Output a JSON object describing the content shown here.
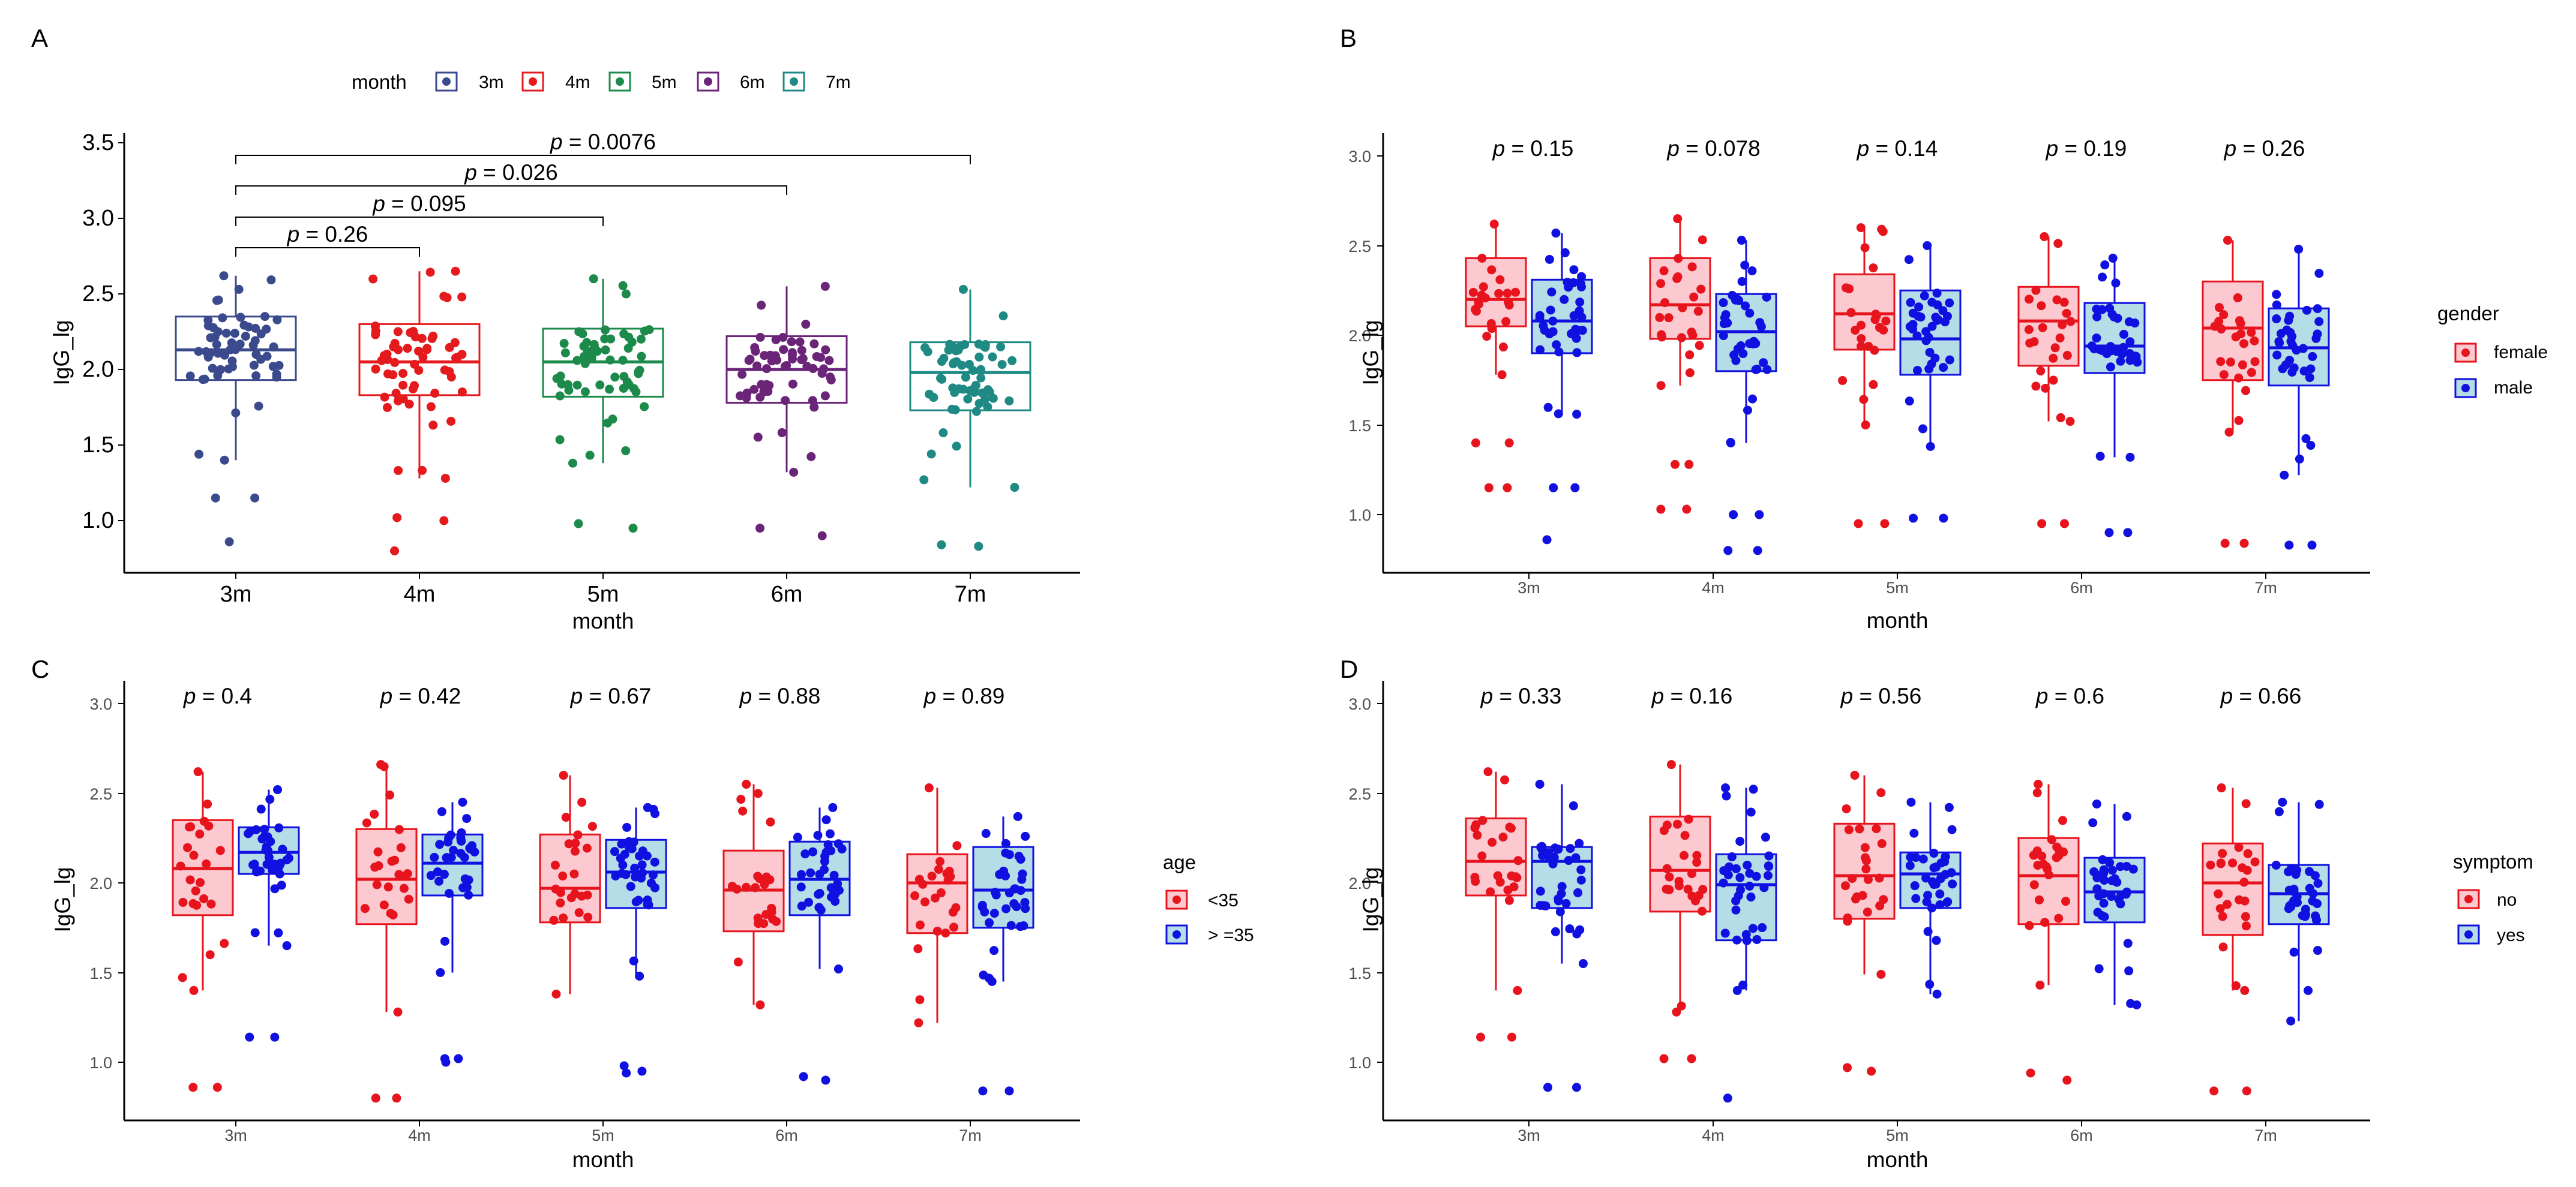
{
  "panels": [
    {
      "label": "A",
      "xlabel": "month",
      "ylabel": "IgG_lg",
      "ylim": [
        0.7,
        3.55
      ],
      "yticks": [
        "1.0",
        "1.5",
        "2.0",
        "2.5",
        "3.0",
        "3.5"
      ],
      "categories": [
        "3m",
        "4m",
        "5m",
        "6m",
        "7m"
      ],
      "legend": {
        "title": "month",
        "items": [
          "3m",
          "4m",
          "5m",
          "6m",
          "7m"
        ]
      },
      "colors": {
        "3m": "#3b4a8c",
        "4m": "#e41a1c",
        "5m": "#1b8a4a",
        "6m": "#6a2478",
        "7m": "#1f8a84"
      },
      "comparisons": [
        {
          "from": "3m",
          "to": "4m",
          "label": "p = 0.26"
        },
        {
          "from": "3m",
          "to": "5m",
          "label": "p = 0.095"
        },
        {
          "from": "3m",
          "to": "6m",
          "label": "p = 0.026"
        },
        {
          "from": "3m",
          "to": "7m",
          "label": "p = 0.0076"
        }
      ]
    },
    {
      "label": "B",
      "xlabel": "month",
      "ylabel": "IgG_lg",
      "ylim": [
        0.7,
        3.05
      ],
      "yticks": [
        "1.0",
        "1.5",
        "2.0",
        "2.5",
        "3.0"
      ],
      "categories": [
        "3m",
        "4m",
        "5m",
        "6m",
        "7m"
      ],
      "pvalues": [
        "p = 0.15",
        "p = 0.078",
        "p = 0.14",
        "p = 0.19",
        "p = 0.26"
      ],
      "legend": {
        "title": "gender",
        "items": [
          "female",
          "male"
        ]
      }
    },
    {
      "label": "C",
      "xlabel": "month",
      "ylabel": "IgG_lg",
      "ylim": [
        0.7,
        3.05
      ],
      "yticks": [
        "1.0",
        "1.5",
        "2.0",
        "2.5",
        "3.0"
      ],
      "categories": [
        "3m",
        "4m",
        "5m",
        "6m",
        "7m"
      ],
      "pvalues": [
        "p = 0.4",
        "p = 0.42",
        "p = 0.67",
        "p = 0.88",
        "p = 0.89"
      ],
      "legend": {
        "title": "age",
        "items": [
          "<35",
          "> =35"
        ]
      }
    },
    {
      "label": "D",
      "xlabel": "month",
      "ylabel": "IgG_lg",
      "ylim": [
        0.7,
        3.05
      ],
      "yticks": [
        "1.0",
        "1.5",
        "2.0",
        "2.5",
        "3.0"
      ],
      "categories": [
        "3m",
        "4m",
        "5m",
        "6m",
        "7m"
      ],
      "pvalues": [
        "p = 0.33",
        "p = 0.16",
        "p = 0.56",
        "p = 0.6",
        "p = 0.66"
      ],
      "legend": {
        "title": "symptom",
        "items": [
          "no",
          "yes"
        ]
      }
    }
  ],
  "chart_data": [
    {
      "panel": "A",
      "type": "boxplot",
      "title": "",
      "xlabel": "month",
      "ylabel": "IgG_lg",
      "ylim": [
        0.7,
        3.55
      ],
      "categories": [
        "3m",
        "4m",
        "5m",
        "6m",
        "7m"
      ],
      "boxes": [
        {
          "group": "3m",
          "lo": 1.4,
          "q1": 1.93,
          "median": 2.13,
          "q3": 2.35,
          "hi": 2.62,
          "outliers": [
            1.15,
            1.15,
            0.86
          ]
        },
        {
          "group": "4m",
          "lo": 1.28,
          "q1": 1.83,
          "median": 2.05,
          "q3": 2.3,
          "hi": 2.65,
          "outliers": [
            1.02,
            1.0,
            0.8
          ]
        },
        {
          "group": "5m",
          "lo": 1.38,
          "q1": 1.82,
          "median": 2.05,
          "q3": 2.27,
          "hi": 2.6,
          "outliers": [
            0.98,
            0.95
          ]
        },
        {
          "group": "6m",
          "lo": 1.32,
          "q1": 1.78,
          "median": 2.0,
          "q3": 2.22,
          "hi": 2.55,
          "outliers": [
            0.95,
            0.9
          ]
        },
        {
          "group": "7m",
          "lo": 1.22,
          "q1": 1.73,
          "median": 1.98,
          "q3": 2.18,
          "hi": 2.53,
          "outliers": [
            0.84,
            0.83
          ]
        }
      ],
      "significance": [
        {
          "groups": [
            "3m",
            "4m"
          ],
          "p": "0.26"
        },
        {
          "groups": [
            "3m",
            "5m"
          ],
          "p": "0.095"
        },
        {
          "groups": [
            "3m",
            "6m"
          ],
          "p": "0.026"
        },
        {
          "groups": [
            "3m",
            "7m"
          ],
          "p": "0.0076"
        }
      ]
    },
    {
      "panel": "B",
      "type": "grouped-boxplot",
      "xlabel": "month",
      "ylabel": "IgG_lg",
      "ylim": [
        0.7,
        3.05
      ],
      "categories": [
        "3m",
        "4m",
        "5m",
        "6m",
        "7m"
      ],
      "series": [
        {
          "name": "female",
          "color": "#e8141d",
          "fill": "#fbc9cf",
          "boxes": [
            {
              "lo": 1.78,
              "q1": 2.05,
              "median": 2.2,
              "q3": 2.43,
              "hi": 2.62,
              "outliers": [
                1.4,
                1.4,
                1.15,
                1.15
              ]
            },
            {
              "lo": 1.72,
              "q1": 1.98,
              "median": 2.17,
              "q3": 2.43,
              "hi": 2.65,
              "outliers": [
                1.28,
                1.28,
                1.03,
                1.03
              ]
            },
            {
              "lo": 1.5,
              "q1": 1.92,
              "median": 2.12,
              "q3": 2.34,
              "hi": 2.6,
              "outliers": [
                0.95,
                0.95
              ]
            },
            {
              "lo": 1.52,
              "q1": 1.83,
              "median": 2.08,
              "q3": 2.27,
              "hi": 2.55,
              "outliers": [
                0.95,
                0.95
              ]
            },
            {
              "lo": 1.46,
              "q1": 1.75,
              "median": 2.04,
              "q3": 2.3,
              "hi": 2.53,
              "outliers": [
                0.84,
                0.84
              ]
            }
          ]
        },
        {
          "name": "male",
          "color": "#1010e0",
          "fill": "#b5dde8",
          "boxes": [
            {
              "lo": 1.56,
              "q1": 1.9,
              "median": 2.08,
              "q3": 2.31,
              "hi": 2.57,
              "outliers": [
                1.15,
                1.15,
                0.86
              ]
            },
            {
              "lo": 1.4,
              "q1": 1.8,
              "median": 2.02,
              "q3": 2.23,
              "hi": 2.53,
              "outliers": [
                1.0,
                1.0,
                0.8,
                0.8
              ]
            },
            {
              "lo": 1.38,
              "q1": 1.78,
              "median": 1.98,
              "q3": 2.25,
              "hi": 2.5,
              "outliers": [
                0.98,
                0.98
              ]
            },
            {
              "lo": 1.32,
              "q1": 1.79,
              "median": 1.94,
              "q3": 2.18,
              "hi": 2.43,
              "outliers": [
                0.9,
                0.9
              ]
            },
            {
              "lo": 1.22,
              "q1": 1.72,
              "median": 1.93,
              "q3": 2.15,
              "hi": 2.48,
              "outliers": [
                0.83,
                0.83
              ]
            }
          ]
        }
      ],
      "pvalues": [
        "0.15",
        "0.078",
        "0.14",
        "0.19",
        "0.26"
      ]
    },
    {
      "panel": "C",
      "type": "grouped-boxplot",
      "xlabel": "month",
      "ylabel": "IgG_lg",
      "ylim": [
        0.7,
        3.05
      ],
      "categories": [
        "3m",
        "4m",
        "5m",
        "6m",
        "7m"
      ],
      "series": [
        {
          "name": "<35",
          "color": "#e8141d",
          "fill": "#fbc9cf",
          "boxes": [
            {
              "lo": 1.4,
              "q1": 1.82,
              "median": 2.08,
              "q3": 2.35,
              "hi": 2.62,
              "outliers": [
                0.86,
                0.86
              ]
            },
            {
              "lo": 1.28,
              "q1": 1.77,
              "median": 2.02,
              "q3": 2.3,
              "hi": 2.66,
              "outliers": [
                0.8,
                0.8
              ]
            },
            {
              "lo": 1.38,
              "q1": 1.78,
              "median": 1.97,
              "q3": 2.27,
              "hi": 2.6,
              "outliers": []
            },
            {
              "lo": 1.32,
              "q1": 1.73,
              "median": 1.96,
              "q3": 2.18,
              "hi": 2.55,
              "outliers": []
            },
            {
              "lo": 1.22,
              "q1": 1.72,
              "median": 2.0,
              "q3": 2.16,
              "hi": 2.53,
              "outliers": []
            }
          ]
        },
        {
          "name": "> =35",
          "color": "#1010e0",
          "fill": "#b5dde8",
          "boxes": [
            {
              "lo": 1.65,
              "q1": 2.05,
              "median": 2.17,
              "q3": 2.31,
              "hi": 2.52,
              "outliers": [
                1.14,
                1.14
              ]
            },
            {
              "lo": 1.5,
              "q1": 1.93,
              "median": 2.11,
              "q3": 2.27,
              "hi": 2.45,
              "outliers": [
                1.02,
                1.02,
                1.0
              ]
            },
            {
              "lo": 1.48,
              "q1": 1.86,
              "median": 2.06,
              "q3": 2.24,
              "hi": 2.42,
              "outliers": [
                0.98,
                0.95,
                0.94
              ]
            },
            {
              "lo": 1.52,
              "q1": 1.82,
              "median": 2.02,
              "q3": 2.23,
              "hi": 2.42,
              "outliers": [
                0.92,
                0.9
              ]
            },
            {
              "lo": 1.45,
              "q1": 1.75,
              "median": 1.96,
              "q3": 2.2,
              "hi": 2.37,
              "outliers": [
                0.84,
                0.84
              ]
            }
          ]
        }
      ],
      "pvalues": [
        "0.4",
        "0.42",
        "0.67",
        "0.88",
        "0.89"
      ]
    },
    {
      "panel": "D",
      "type": "grouped-boxplot",
      "xlabel": "month",
      "ylabel": "IgG_lg",
      "ylim": [
        0.7,
        3.05
      ],
      "categories": [
        "3m",
        "4m",
        "5m",
        "6m",
        "7m"
      ],
      "series": [
        {
          "name": "no",
          "color": "#e8141d",
          "fill": "#fbc9cf",
          "boxes": [
            {
              "lo": 1.4,
              "q1": 1.93,
              "median": 2.12,
              "q3": 2.36,
              "hi": 2.62,
              "outliers": [
                1.14,
                1.14
              ]
            },
            {
              "lo": 1.28,
              "q1": 1.84,
              "median": 2.07,
              "q3": 2.37,
              "hi": 2.66,
              "outliers": [
                1.02,
                1.02
              ]
            },
            {
              "lo": 1.49,
              "q1": 1.8,
              "median": 2.04,
              "q3": 2.33,
              "hi": 2.6,
              "outliers": [
                0.97,
                0.95
              ]
            },
            {
              "lo": 1.43,
              "q1": 1.77,
              "median": 2.04,
              "q3": 2.25,
              "hi": 2.55,
              "outliers": [
                0.94,
                0.9
              ]
            },
            {
              "lo": 1.4,
              "q1": 1.71,
              "median": 2.0,
              "q3": 2.22,
              "hi": 2.53,
              "outliers": [
                0.84,
                0.84
              ]
            }
          ]
        },
        {
          "name": "yes",
          "color": "#1010e0",
          "fill": "#b5dde8",
          "boxes": [
            {
              "lo": 1.55,
              "q1": 1.86,
              "median": 2.12,
              "q3": 2.2,
              "hi": 2.55,
              "outliers": [
                0.86,
                0.86
              ]
            },
            {
              "lo": 1.4,
              "q1": 1.68,
              "median": 1.99,
              "q3": 2.16,
              "hi": 2.53,
              "outliers": [
                0.8
              ]
            },
            {
              "lo": 1.38,
              "q1": 1.86,
              "median": 2.05,
              "q3": 2.17,
              "hi": 2.45,
              "outliers": []
            },
            {
              "lo": 1.32,
              "q1": 1.78,
              "median": 1.95,
              "q3": 2.14,
              "hi": 2.44,
              "outliers": []
            },
            {
              "lo": 1.23,
              "q1": 1.77,
              "median": 1.94,
              "q3": 2.1,
              "hi": 2.45,
              "outliers": []
            }
          ]
        }
      ],
      "pvalues": [
        "0.33",
        "0.16",
        "0.56",
        "0.6",
        "0.66"
      ]
    }
  ]
}
